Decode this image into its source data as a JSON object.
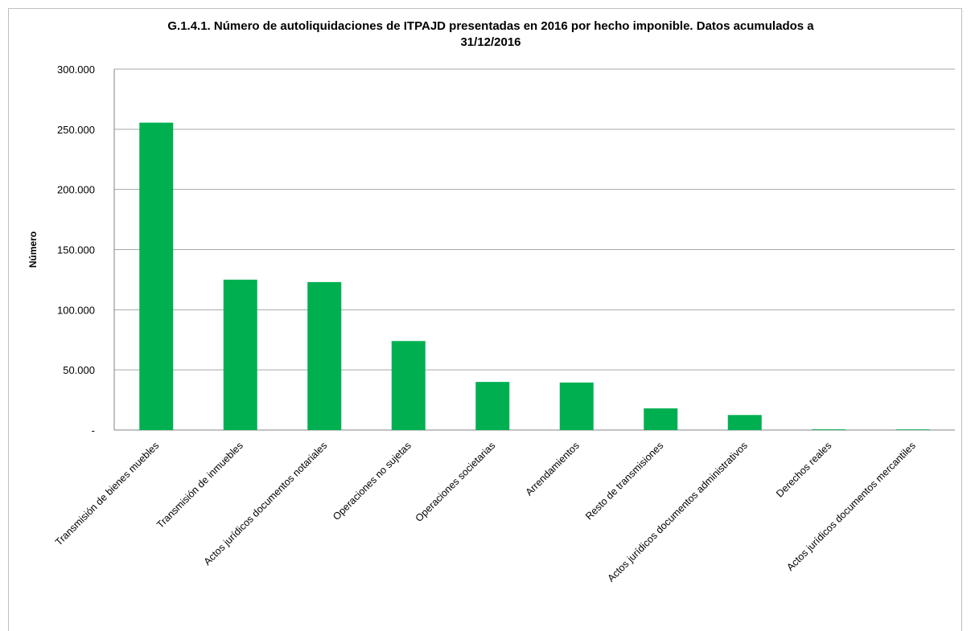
{
  "chart_data": {
    "type": "bar",
    "title_lines": [
      "G.1.4.1. Número de autoliquidaciones de ITPAJD presentadas en 2016 por hecho imponible. Datos acumulados a",
      "31/12/2016"
    ],
    "xlabel": "",
    "ylabel": "Número",
    "ylim": [
      0,
      300000
    ],
    "yticks": [
      0,
      50000,
      100000,
      150000,
      200000,
      250000,
      300000
    ],
    "ytick_labels": [
      "-",
      "50.000",
      "100.000",
      "150.000",
      "200.000",
      "250.000",
      "300.000"
    ],
    "grid": true,
    "legend": "none",
    "bar_color": "#00b050",
    "categories": [
      "Transmisión de bienes muebles",
      "Transmisión de inmuebles",
      "Actos jurídicos documentos notariales",
      "Operaciones no sujetas",
      "Operaciones societarias",
      "Arrendamientos",
      "Resto de transmisiones",
      "Actos jurídicos documentos administrativos",
      "Derechos reales",
      "Actos jurídicos documentos mercantiles"
    ],
    "values": [
      255500,
      125000,
      123000,
      74000,
      40000,
      39500,
      18000,
      12500,
      600,
      400
    ]
  }
}
